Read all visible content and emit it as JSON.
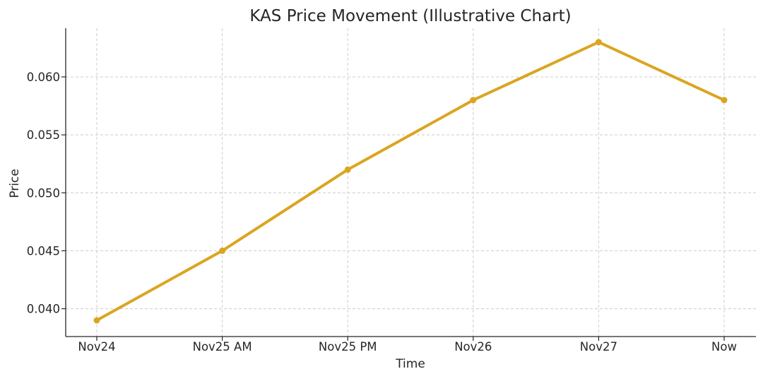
{
  "chart_data": {
    "type": "line",
    "title": "KAS Price Movement (Illustrative Chart)",
    "xlabel": "Time",
    "ylabel": "Price",
    "categories": [
      "Nov24",
      "Nov25 AM",
      "Nov25 PM",
      "Nov26",
      "Nov27",
      "Now"
    ],
    "series": [
      {
        "name": "KAS",
        "values": [
          0.039,
          0.045,
          0.052,
          0.058,
          0.063,
          0.058
        ],
        "color": "#daa520"
      }
    ],
    "ylim": [
      0.0376,
      0.0642
    ],
    "yticks": [
      0.04,
      0.045,
      0.05,
      0.055,
      0.06
    ],
    "ytick_labels": [
      "0.040",
      "0.045",
      "0.050",
      "0.055",
      "0.060"
    ],
    "grid": true
  }
}
